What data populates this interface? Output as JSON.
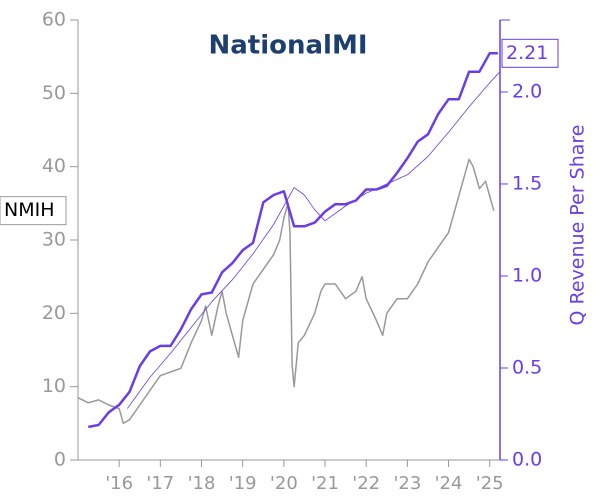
{
  "chart_data": {
    "type": "line",
    "logo": "NationalMI",
    "y2_label": "Q Revenue Per Share",
    "xlim": [
      2015.0,
      2025.25
    ],
    "xticks": [
      {
        "value": 2016,
        "label": "'16"
      },
      {
        "value": 2017,
        "label": "'17"
      },
      {
        "value": 2018,
        "label": "'18"
      },
      {
        "value": 2019,
        "label": "'19"
      },
      {
        "value": 2020,
        "label": "'20"
      },
      {
        "value": 2021,
        "label": "'21"
      },
      {
        "value": 2022,
        "label": "'22"
      },
      {
        "value": 2023,
        "label": "'23"
      },
      {
        "value": 2024,
        "label": "'24"
      },
      {
        "value": 2025,
        "label": "'25"
      }
    ],
    "ylim": [
      0,
      60
    ],
    "yticks": [
      0,
      10,
      20,
      30,
      40,
      50,
      60
    ],
    "y2lim": [
      0,
      2.391
    ],
    "y2ticks": [
      {
        "value": 0,
        "label": "0.0"
      },
      0.5,
      {
        "value": 1,
        "label": "1.0"
      },
      1.5,
      {
        "value": 2,
        "label": "2.0"
      }
    ],
    "series": [
      {
        "name": "NMIH",
        "color": "#999999",
        "x": [
          2015.0,
          2015.25,
          2015.5,
          2015.75,
          2016.0,
          2016.1,
          2016.25,
          2016.5,
          2016.75,
          2017.0,
          2017.25,
          2017.5,
          2017.75,
          2018.0,
          2018.1,
          2018.25,
          2018.4,
          2018.5,
          2018.6,
          2018.75,
          2018.9,
          2019.0,
          2019.25,
          2019.5,
          2019.75,
          2019.9,
          2020.0,
          2020.1,
          2020.15,
          2020.2,
          2020.25,
          2020.35,
          2020.5,
          2020.75,
          2020.9,
          2021.0,
          2021.25,
          2021.5,
          2021.75,
          2021.9,
          2022.0,
          2022.25,
          2022.4,
          2022.5,
          2022.75,
          2023.0,
          2023.25,
          2023.5,
          2023.75,
          2024.0,
          2024.25,
          2024.5,
          2024.6,
          2024.75,
          2024.9,
          2025.0,
          2025.1
        ],
        "values": [
          8.5,
          7.8,
          8.2,
          7.5,
          7.0,
          5.0,
          5.5,
          7.5,
          9.5,
          11.5,
          12,
          12.5,
          16,
          19,
          21,
          17,
          21,
          23,
          20,
          17,
          14,
          19,
          24,
          26,
          28,
          30,
          33,
          35,
          31,
          13,
          10,
          16,
          17,
          20,
          23,
          24,
          24,
          22,
          23,
          25,
          22,
          19,
          17,
          20,
          22,
          22,
          24,
          27,
          29,
          31,
          36,
          41,
          40,
          37,
          38,
          36,
          34
        ]
      },
      {
        "name": "Q Revenue Per Share",
        "color": "#6a3de8",
        "axis": "y2",
        "x": [
          2015.25,
          2015.5,
          2015.75,
          2016.0,
          2016.25,
          2016.5,
          2016.75,
          2017.0,
          2017.25,
          2017.5,
          2017.75,
          2018.0,
          2018.25,
          2018.5,
          2018.75,
          2019.0,
          2019.25,
          2019.5,
          2019.75,
          2020.0,
          2020.25,
          2020.5,
          2020.75,
          2021.0,
          2021.25,
          2021.5,
          2021.75,
          2022.0,
          2022.25,
          2022.5,
          2022.75,
          2023.0,
          2023.25,
          2023.5,
          2023.75,
          2024.0,
          2024.25,
          2024.5,
          2024.75,
          2025.0,
          2025.2
        ],
        "values": [
          0.18,
          0.19,
          0.26,
          0.3,
          0.37,
          0.51,
          0.59,
          0.62,
          0.62,
          0.71,
          0.82,
          0.9,
          0.91,
          1.02,
          1.07,
          1.14,
          1.18,
          1.4,
          1.44,
          1.46,
          1.27,
          1.27,
          1.29,
          1.35,
          1.39,
          1.39,
          1.41,
          1.47,
          1.47,
          1.49,
          1.56,
          1.64,
          1.73,
          1.77,
          1.88,
          1.96,
          1.96,
          2.11,
          2.11,
          2.21,
          2.21
        ]
      },
      {
        "color": "#6a3de8",
        "axis": "y2",
        "x": [
          2016.2,
          2016.75,
          2017.25,
          2017.75,
          2018.25,
          2018.75,
          2019.25,
          2019.75,
          2020.25,
          2020.5,
          2020.75,
          2021.0,
          2021.5,
          2022.0,
          2022.5,
          2023.0,
          2023.5,
          2024.0,
          2024.5,
          2025.0,
          2025.25
        ],
        "values": [
          0.28,
          0.45,
          0.58,
          0.72,
          0.86,
          0.98,
          1.12,
          1.28,
          1.48,
          1.44,
          1.36,
          1.3,
          1.38,
          1.45,
          1.5,
          1.55,
          1.65,
          1.78,
          1.92,
          2.05,
          2.11
        ]
      }
    ]
  }
}
